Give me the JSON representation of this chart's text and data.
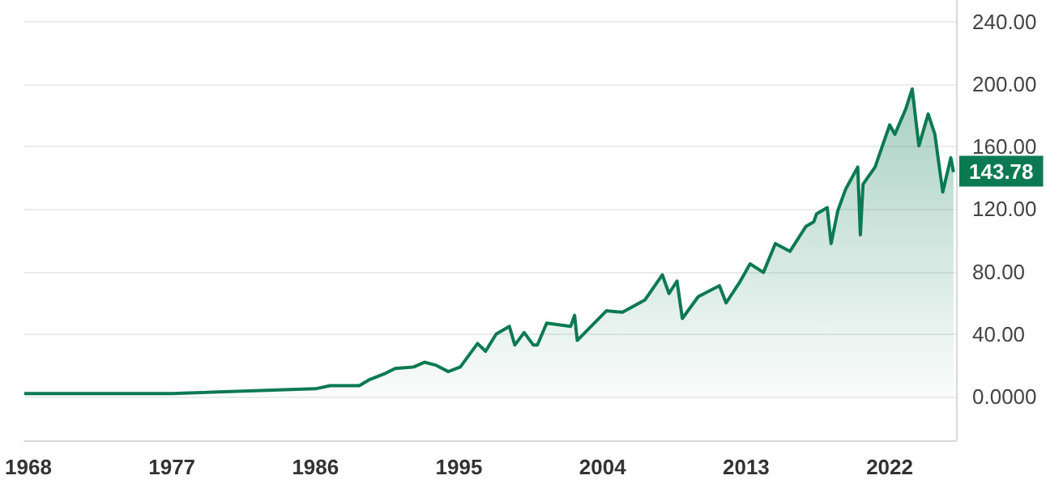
{
  "chart_data": {
    "type": "area",
    "x": [
      "1967-10",
      "1968-06",
      "1977-01",
      "1986-01",
      "1986-12",
      "1987-09",
      "1988-10",
      "1989-06",
      "1990-06",
      "1991-01",
      "1992-03",
      "1992-11",
      "1993-08",
      "1994-05",
      "1995-02",
      "1996-03",
      "1996-09",
      "1997-05",
      "1998-03",
      "1998-07",
      "1999-02",
      "1999-09",
      "1999-12",
      "2000-07",
      "2002-01",
      "2002-04",
      "2002-06",
      "2004-04",
      "2005-04",
      "2006-09",
      "2007-10",
      "2008-03",
      "2008-09",
      "2009-01",
      "2010-01",
      "2011-05",
      "2011-10",
      "2012-08",
      "2013-04",
      "2014-02",
      "2014-11",
      "2015-10",
      "2016-10",
      "2017-04",
      "2017-06",
      "2018-02",
      "2018-05",
      "2018-10",
      "2019-04",
      "2020-01",
      "2020-03",
      "2020-05",
      "2021-02",
      "2022-01",
      "2022-05",
      "2023-01",
      "2023-06",
      "2023-11",
      "2024-06",
      "2024-11",
      "2025-05",
      "2025-11",
      "2026-01"
    ],
    "series": [
      {
        "color": "#0b7a53",
        "values": [
          2,
          2,
          2,
          5,
          7,
          7,
          7,
          11,
          15,
          18,
          19,
          22,
          20,
          16,
          19,
          34,
          29,
          40,
          45,
          33,
          41,
          33,
          33,
          47,
          45,
          52,
          36,
          55,
          54,
          62,
          78,
          66,
          74,
          50,
          64,
          71,
          60,
          73,
          85,
          79.5,
          98,
          93,
          109,
          112,
          117,
          121,
          98,
          119,
          133,
          147,
          103.6,
          136,
          147,
          174,
          168,
          184,
          197,
          160.6,
          181,
          168,
          131,
          153,
          143.78
        ]
      }
    ],
    "xlim": [
      "1967-10",
      "2026-03"
    ],
    "xticks": [
      "1968",
      "1977",
      "1986",
      "1995",
      "2004",
      "2013",
      "2022"
    ],
    "ylim": [
      -28,
      254
    ],
    "yticks": [
      {
        "value": 0,
        "label": "0.0000"
      },
      {
        "value": 40,
        "label": "40.00"
      },
      {
        "value": 80,
        "label": "80.00"
      },
      {
        "value": 120,
        "label": "120.00"
      },
      {
        "value": 160,
        "label": "160.00"
      },
      {
        "value": 200,
        "label": "200.00"
      },
      {
        "value": 240,
        "label": "240.00"
      }
    ],
    "grid": "y",
    "annotations": [
      {
        "text": "143.78",
        "x": "2026-01",
        "y": 143.78
      }
    ]
  }
}
